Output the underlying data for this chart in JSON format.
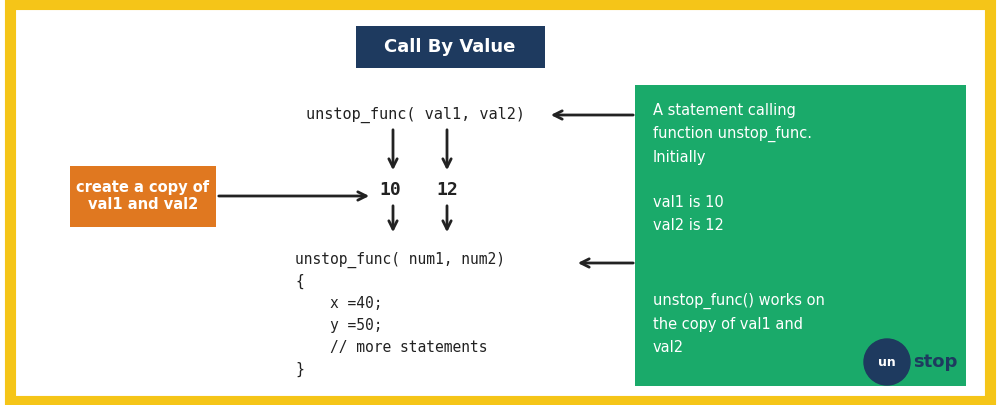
{
  "background_color": "#ffffff",
  "border_color": "#f5c518",
  "border_width": 8,
  "title_text": "Call By Value",
  "title_bg": "#1e3a5f",
  "title_color": "#ffffff",
  "title_fontsize": 13,
  "orange_box_text": "create a copy of\nval1 and val2",
  "orange_box_color": "#e07820",
  "green_box1_text": "A statement calling\nfunction unstop_func.\nInitially\n\nval1 is 10\nval2 is 12",
  "green_box2_text": "unstop_func() works on\nthe copy of val1 and\nval2",
  "green_color": "#1aaa6a",
  "white_text": "#ffffff",
  "dark_text": "#222222",
  "func_call1": "unstop_func( val1, val2)",
  "val1_text": "10",
  "val2_text": "12",
  "func_call2_line1": "unstop_func( num1, num2)",
  "func_call2_rest": "{\n    x =40;\n    y =50;\n    // more statements\n}",
  "font_family": "monospace",
  "label_fontsize": 11,
  "arrow_color": "#222222",
  "logo_circle_color": "#1e3a5f",
  "logo_text_color": "#1e3a5f"
}
